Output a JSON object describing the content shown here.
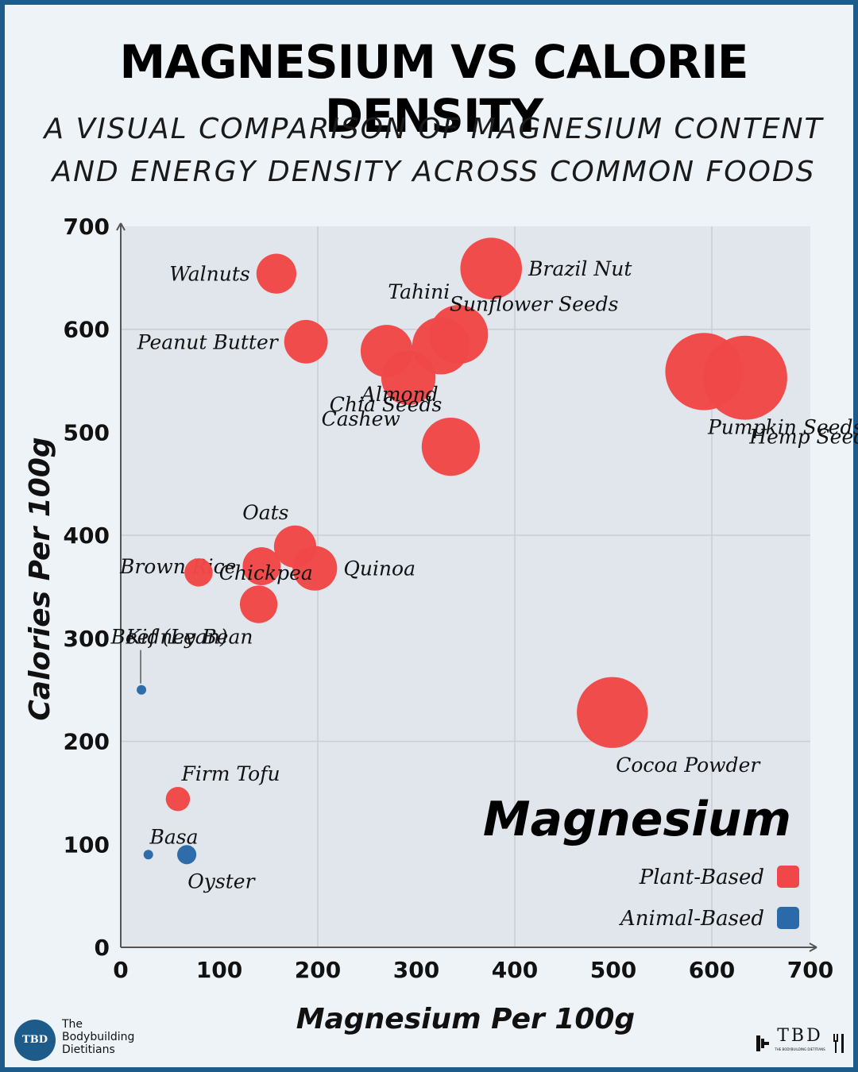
{
  "title": "MAGNESIUM VS CALORIE DENSITY",
  "subtitle_line1": "A VISUAL COMPARISON OF MAGNESIUM CONTENT",
  "subtitle_line2": "AND ENERGY DENSITY ACROSS COMMON FOODS",
  "colors": {
    "plant": "#f04848",
    "animal": "#2a6aa8",
    "accent": "#1d5b8a",
    "background": "#eef3f8"
  },
  "chart_data": {
    "type": "scatter",
    "xlabel": "Magnesium Per 100g",
    "ylabel": "Calories Per 100g",
    "xlim": [
      0,
      700
    ],
    "ylim": [
      0,
      700
    ],
    "xticks": [
      0,
      100,
      200,
      300,
      400,
      500,
      600,
      700
    ],
    "yticks": [
      0,
      100,
      200,
      300,
      400,
      500,
      600,
      700
    ],
    "grid": true,
    "bubble_size_encodes": "magnesium",
    "legend": {
      "title": "Magnesium",
      "position": "bottom-right",
      "entries": [
        {
          "label": "Plant-Based",
          "group": "plant"
        },
        {
          "label": "Animal-Based",
          "group": "animal"
        }
      ]
    },
    "points": [
      {
        "name": "Walnuts",
        "x": 158,
        "y": 654,
        "group": "plant",
        "label_pos": "left"
      },
      {
        "name": "Brazil Nut",
        "x": 376,
        "y": 659,
        "group": "plant",
        "label_pos": "right"
      },
      {
        "name": "Tahini",
        "x": 343,
        "y": 595,
        "group": "plant",
        "label_pos": "upleft"
      },
      {
        "name": "Peanut Butter",
        "x": 188,
        "y": 588,
        "group": "plant",
        "label_pos": "left"
      },
      {
        "name": "Cashew",
        "x": 292,
        "y": 553,
        "group": "plant",
        "label_pos": "downleft"
      },
      {
        "name": "Almond",
        "x": 270,
        "y": 579,
        "group": "plant",
        "label_pos": "below"
      },
      {
        "name": "Sunflower Seeds",
        "x": 325,
        "y": 584,
        "group": "plant",
        "label_pos": "upright"
      },
      {
        "name": "Hemp Seeds",
        "x": 700,
        "y": 553,
        "group": "plant",
        "label_pos": "downright"
      },
      {
        "name": "Pumpkin Seeds",
        "x": 592,
        "y": 559,
        "group": "plant",
        "label_pos": "downright"
      },
      {
        "name": "Chia Seeds",
        "x": 335,
        "y": 486,
        "group": "plant",
        "label_pos": "upleft"
      },
      {
        "name": "Oats",
        "x": 177,
        "y": 389,
        "group": "plant",
        "label_pos": "upleft"
      },
      {
        "name": "Quinoa",
        "x": 197,
        "y": 368,
        "group": "plant",
        "label_pos": "right"
      },
      {
        "name": "Brown Rice",
        "x": 143,
        "y": 370,
        "group": "plant",
        "label_pos": "left"
      },
      {
        "name": "Chickpea",
        "x": 79,
        "y": 364,
        "group": "plant",
        "label_pos": "right"
      },
      {
        "name": "Kidney Bean",
        "x": 140,
        "y": 333,
        "group": "plant",
        "label_pos": "downleft"
      },
      {
        "name": "Cocoa Powder",
        "x": 499,
        "y": 228,
        "group": "plant",
        "label_pos": "downright"
      },
      {
        "name": "Firm Tofu",
        "x": 58,
        "y": 144,
        "group": "plant",
        "label_pos": "upright"
      },
      {
        "name": "Beef (Lean)",
        "x": 21,
        "y": 250,
        "group": "animal",
        "label_pos": "above-leader"
      },
      {
        "name": "Basa",
        "x": 28,
        "y": 90,
        "group": "animal",
        "label_pos": "upright"
      },
      {
        "name": "Oyster",
        "x": 67,
        "y": 90,
        "group": "animal",
        "label_pos": "downright"
      }
    ]
  },
  "brand": {
    "logo_text": "TBD",
    "name_line1": "The",
    "name_line2": "Bodybuilding",
    "name_line3": "Dietitians",
    "right_mark": "TBD",
    "right_sub": "THE BODYBUILDING DIETITIANS"
  }
}
